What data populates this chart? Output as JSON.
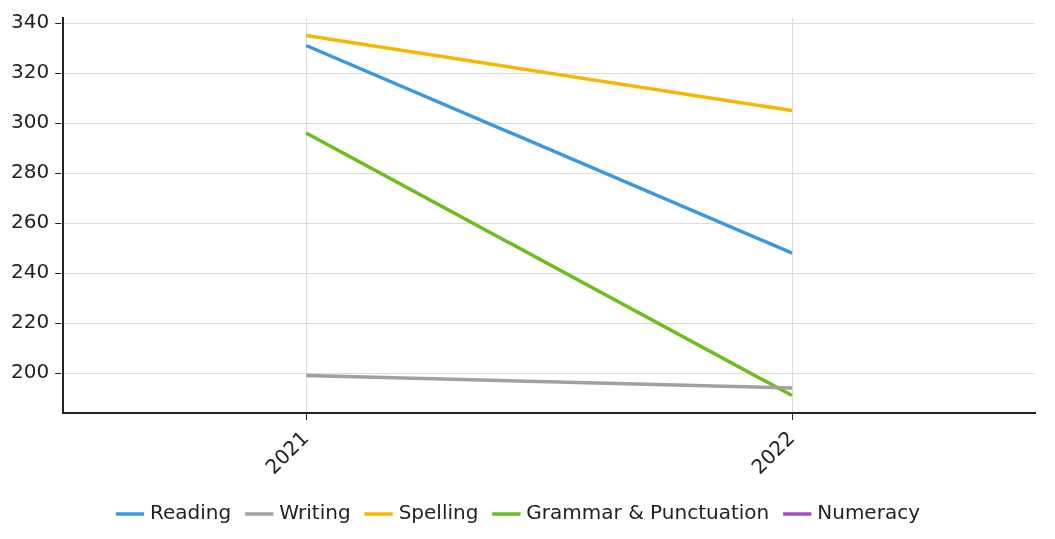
{
  "chart_data": {
    "type": "line",
    "categories": [
      "2021",
      "2022"
    ],
    "series": [
      {
        "name": "Reading",
        "color": "#3a98e0",
        "values": [
          331,
          248
        ]
      },
      {
        "name": "Writing",
        "color": "#a0a0a0",
        "values": [
          199,
          194
        ]
      },
      {
        "name": "Spelling",
        "color": "#f5b700",
        "values": [
          335,
          305
        ]
      },
      {
        "name": "Grammar & Punctuation",
        "color": "#6abf1e",
        "values": [
          296,
          191
        ]
      },
      {
        "name": "Numeracy",
        "color": "#a64dc4",
        "values": [
          null,
          null
        ]
      }
    ],
    "ylim": [
      184,
      342
    ],
    "yticks": [
      200,
      220,
      240,
      260,
      280,
      300,
      320,
      340
    ],
    "grid": true,
    "legend": "bottom",
    "marker": "none",
    "line_style": "solid"
  }
}
